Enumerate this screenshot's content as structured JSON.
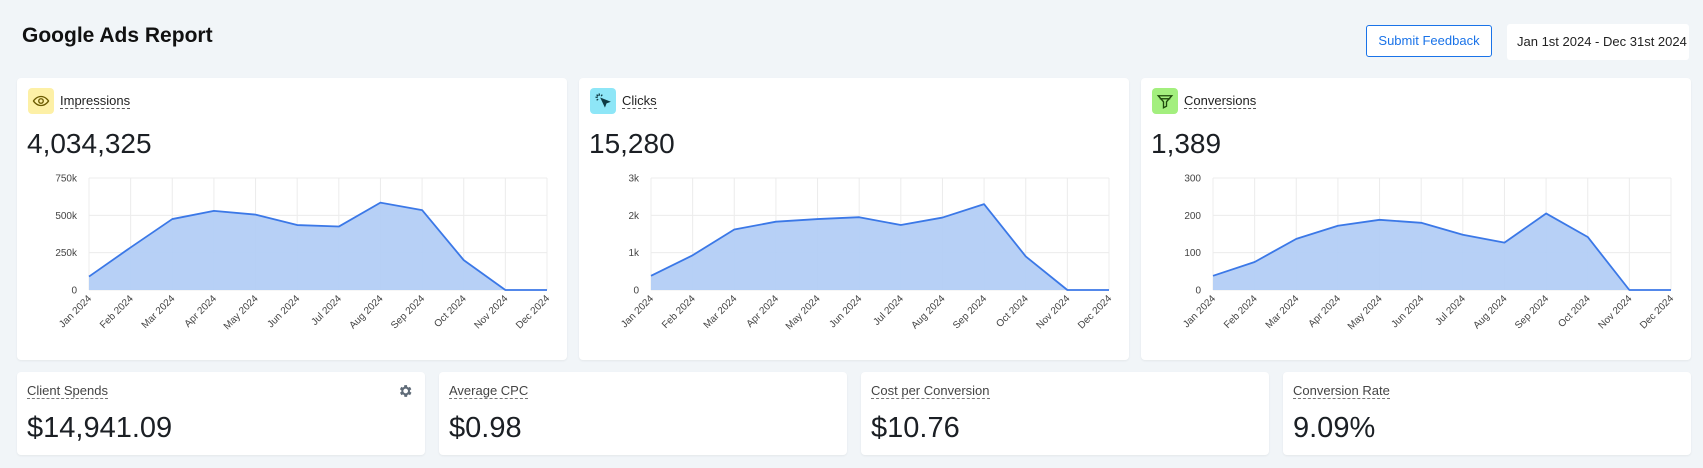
{
  "header": {
    "title": "Google Ads Report",
    "feedback_label": "Submit Feedback",
    "date_range": "Jan 1st 2024 - Dec 31st 2024"
  },
  "metrics": [
    {
      "label": "Impressions",
      "value": "4,034,325",
      "icon": "eye-icon",
      "icon_bg": "#fdf0a6",
      "icon_color": "#6b5a00"
    },
    {
      "label": "Clicks",
      "value": "15,280",
      "icon": "cursor-click-icon",
      "icon_bg": "#8ee6f7",
      "icon_color": "#0f3b44"
    },
    {
      "label": "Conversions",
      "value": "1,389",
      "icon": "funnel-icon",
      "icon_bg": "#a3ef7e",
      "icon_color": "#1f4a0c"
    }
  ],
  "stats": [
    {
      "label": "Client Spends",
      "value": "$14,941.09",
      "has_settings": true
    },
    {
      "label": "Average CPC",
      "value": "$0.98"
    },
    {
      "label": "Cost per Conversion",
      "value": "$10.76"
    },
    {
      "label": "Conversion Rate",
      "value": "9.09%"
    }
  ],
  "colors": {
    "accent": "#1a73e8",
    "series_line": "#3b78e7",
    "series_fill": "#b3cdf5"
  },
  "chart_data": [
    {
      "type": "area",
      "categories": [
        "Jan 2024",
        "Feb 2024",
        "Mar 2024",
        "Apr 2024",
        "May 2024",
        "Jun 2024",
        "Jul 2024",
        "Aug 2024",
        "Sep 2024",
        "Oct 2024",
        "Nov 2024",
        "Dec 2024"
      ],
      "values": [
        90000,
        285000,
        475000,
        530000,
        505000,
        435000,
        425000,
        585000,
        535000,
        200000,
        0,
        0
      ],
      "ylim": [
        0,
        750000
      ],
      "yticks": [
        0,
        250000,
        500000,
        750000
      ],
      "ytick_labels": [
        "0",
        "250k",
        "500k",
        "750k"
      ],
      "grid": true
    },
    {
      "type": "area",
      "categories": [
        "Jan 2024",
        "Feb 2024",
        "Mar 2024",
        "Apr 2024",
        "May 2024",
        "Jun 2024",
        "Jul 2024",
        "Aug 2024",
        "Sep 2024",
        "Oct 2024",
        "Nov 2024",
        "Dec 2024"
      ],
      "values": [
        380,
        930,
        1620,
        1830,
        1900,
        1950,
        1740,
        1940,
        2300,
        900,
        0,
        0
      ],
      "ylim": [
        0,
        3000
      ],
      "yticks": [
        0,
        1000,
        2000,
        3000
      ],
      "ytick_labels": [
        "0",
        "1k",
        "2k",
        "3k"
      ],
      "grid": true
    },
    {
      "type": "area",
      "categories": [
        "Jan 2024",
        "Feb 2024",
        "Mar 2024",
        "Apr 2024",
        "May 2024",
        "Jun 2024",
        "Jul 2024",
        "Aug 2024",
        "Sep 2024",
        "Oct 2024",
        "Nov 2024",
        "Dec 2024"
      ],
      "values": [
        38,
        75,
        137,
        172,
        188,
        180,
        148,
        127,
        205,
        142,
        0,
        0
      ],
      "ylim": [
        0,
        300
      ],
      "yticks": [
        0,
        100,
        200,
        300
      ],
      "ytick_labels": [
        "0",
        "100",
        "200",
        "300"
      ],
      "grid": true
    }
  ]
}
